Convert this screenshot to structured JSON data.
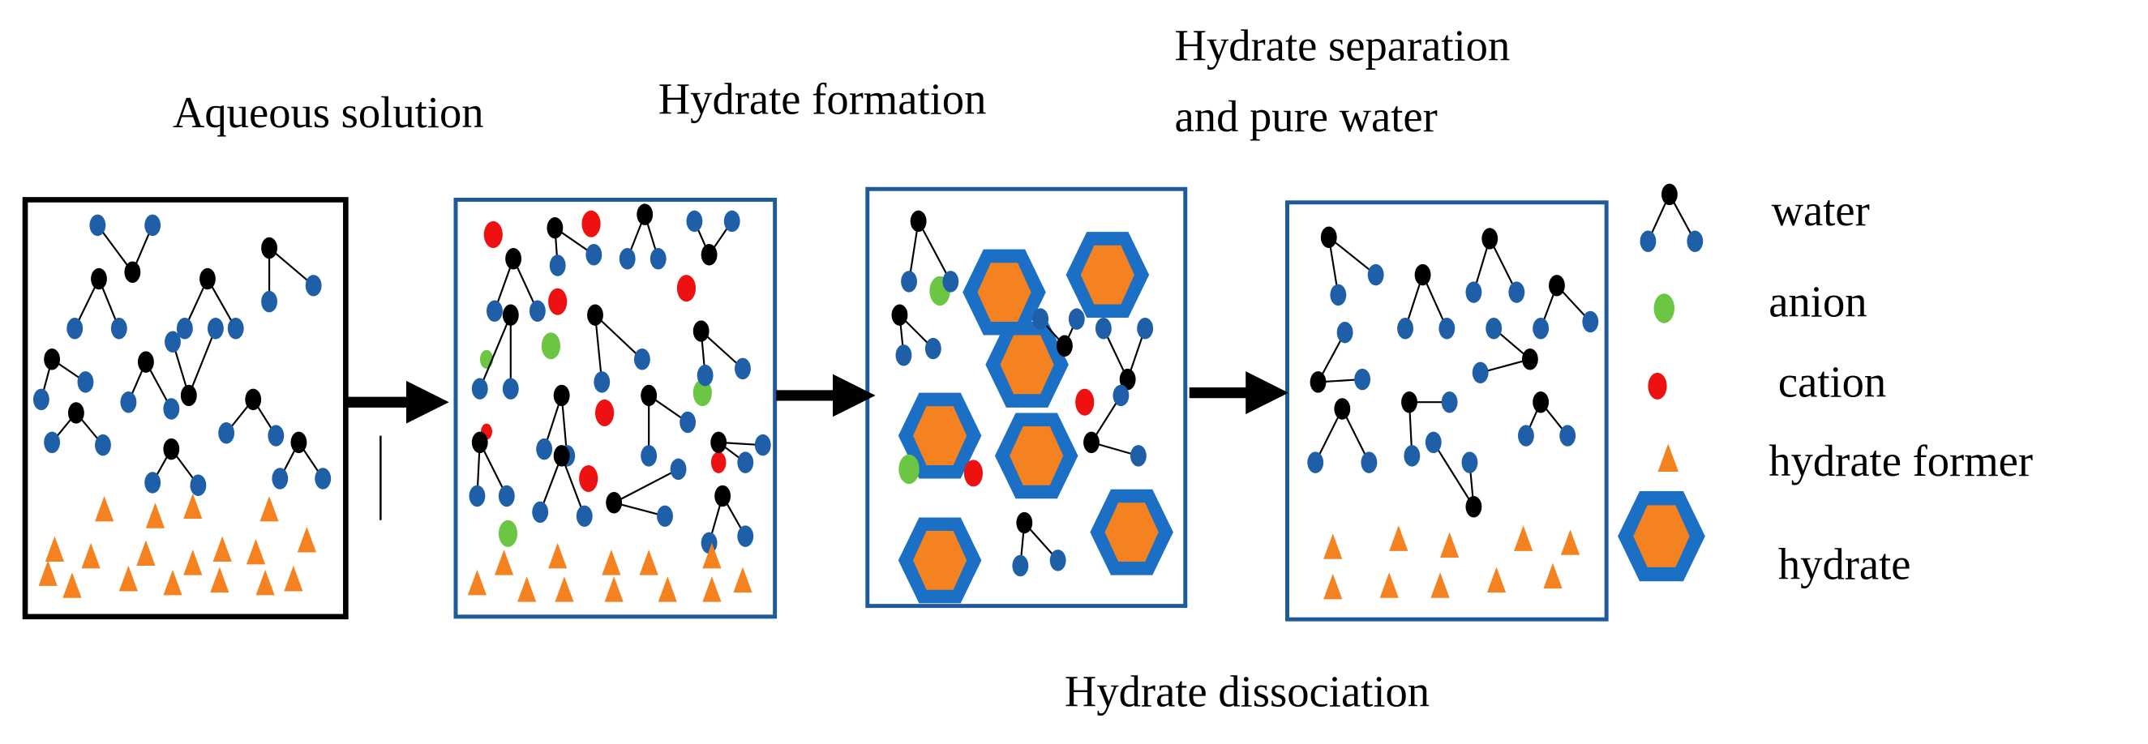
{
  "stages": {
    "aqueous": "Aqueous solution",
    "formation": "Hydrate formation",
    "separation_line1": "Hydrate separation",
    "separation_line2": "and pure water",
    "dissociation": "Hydrate dissociation"
  },
  "legend": {
    "water": "water",
    "anion": "anion",
    "cation": "cation",
    "hydrate_former": "hydrate former",
    "hydrate": "hydrate"
  },
  "colors": {
    "oxygen": "#000000",
    "hydrogen": "#1f5fa8",
    "anion": "#6cc644",
    "cation": "#ee1111",
    "hydrate_former": "#f58220",
    "hydrate_shell": "#1b6fc4",
    "box_border_first": "#000000",
    "box_border": "#1f5a9a"
  }
}
